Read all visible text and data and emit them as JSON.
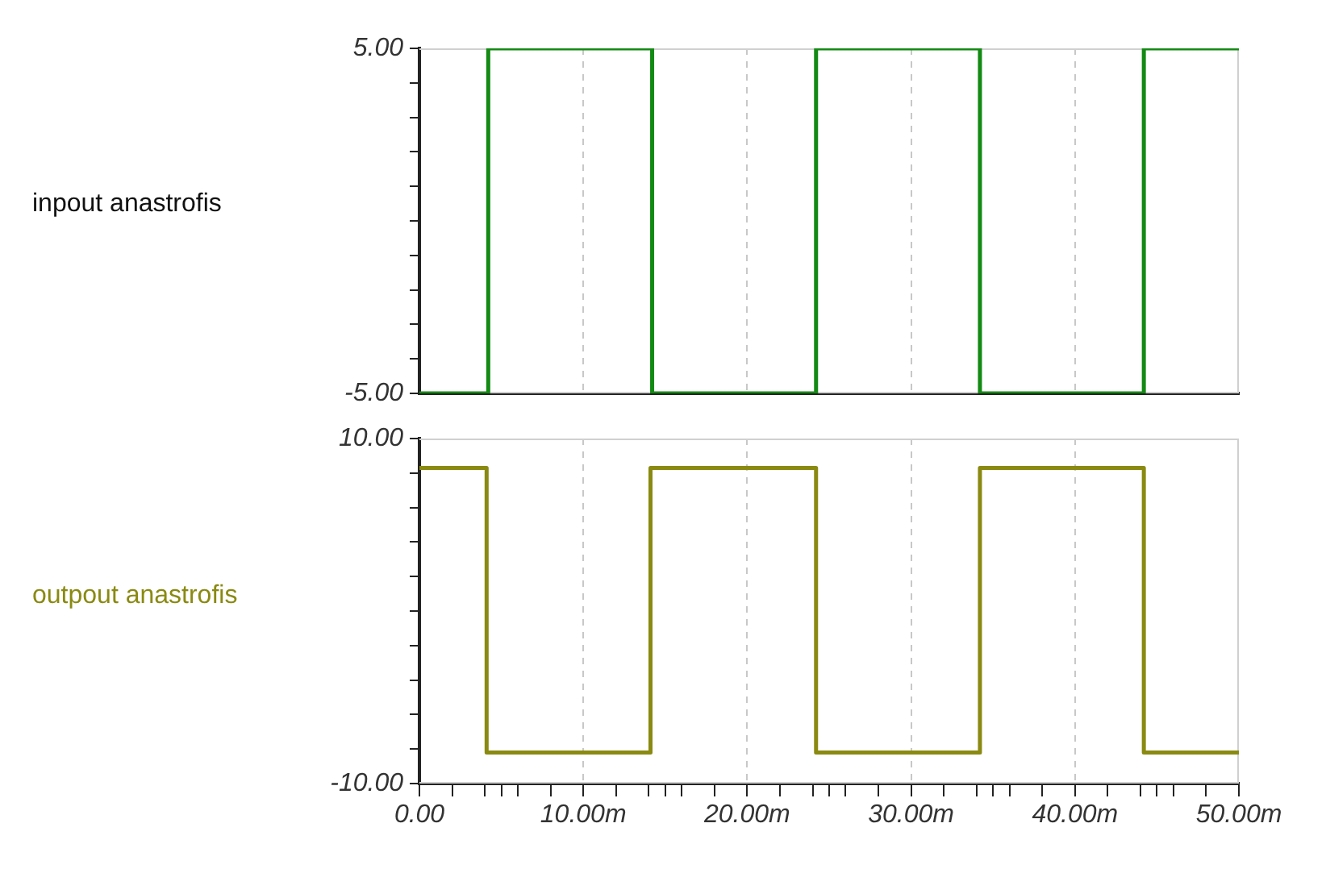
{
  "chart_data": [
    {
      "type": "step",
      "ylabel": "inpout anastrofis",
      "x": [
        0,
        4.2,
        14.2,
        24.2,
        34.2,
        44.2,
        50
      ],
      "series": [
        {
          "color": "#138a13",
          "values": [
            -5,
            5,
            -5,
            5,
            -5,
            5,
            5
          ]
        }
      ],
      "ylim": [
        -5,
        5
      ],
      "yticks": [
        {
          "value": -5,
          "label": "-5.00"
        },
        {
          "value": -4,
          "label": null
        },
        {
          "value": -3,
          "label": null
        },
        {
          "value": -2,
          "label": null
        },
        {
          "value": -1,
          "label": null
        },
        {
          "value": 0,
          "label": null
        },
        {
          "value": 1,
          "label": null
        },
        {
          "value": 2,
          "label": null
        },
        {
          "value": 3,
          "label": null
        },
        {
          "value": 4,
          "label": null
        },
        {
          "value": 5,
          "label": "5.00"
        }
      ],
      "xlim": [
        0,
        50
      ],
      "xticks": [
        {
          "value": 0,
          "label": null
        },
        {
          "value": 10,
          "label": null
        },
        {
          "value": 20,
          "label": null
        },
        {
          "value": 30,
          "label": null
        },
        {
          "value": 40,
          "label": null
        },
        {
          "value": 50,
          "label": null
        }
      ],
      "grid": "x",
      "tick_labels": "y"
    },
    {
      "type": "step",
      "ylabel": "outpout anastrofis",
      "x": [
        0,
        4.1,
        14.1,
        24.2,
        34.2,
        44.2,
        50
      ],
      "series": [
        {
          "color": "#8a8a12",
          "values": [
            8.3,
            -8.2,
            8.3,
            -8.2,
            8.3,
            -8.2,
            -8.2
          ]
        }
      ],
      "ylim": [
        -10,
        10
      ],
      "yticks": [
        {
          "value": -10,
          "label": "-10.00"
        },
        {
          "value": -8,
          "label": null
        },
        {
          "value": -6,
          "label": null
        },
        {
          "value": -4,
          "label": null
        },
        {
          "value": -2,
          "label": null
        },
        {
          "value": 0,
          "label": null
        },
        {
          "value": 2,
          "label": null
        },
        {
          "value": 4,
          "label": null
        },
        {
          "value": 6,
          "label": null
        },
        {
          "value": 8,
          "label": null
        },
        {
          "value": 10,
          "label": "10.00"
        }
      ],
      "xlim": [
        0,
        50
      ],
      "xticks": [
        {
          "value": 0,
          "label": "0.00"
        },
        {
          "value": 2,
          "label": null
        },
        {
          "value": 4,
          "label": null
        },
        {
          "value": 5,
          "label": null
        },
        {
          "value": 6,
          "label": null
        },
        {
          "value": 8,
          "label": null
        },
        {
          "value": 10,
          "label": "10.00m"
        },
        {
          "value": 12,
          "label": null
        },
        {
          "value": 14,
          "label": null
        },
        {
          "value": 15,
          "label": null
        },
        {
          "value": 16,
          "label": null
        },
        {
          "value": 18,
          "label": null
        },
        {
          "value": 20,
          "label": "20.00m"
        },
        {
          "value": 22,
          "label": null
        },
        {
          "value": 24,
          "label": null
        },
        {
          "value": 25,
          "label": null
        },
        {
          "value": 26,
          "label": null
        },
        {
          "value": 28,
          "label": null
        },
        {
          "value": 30,
          "label": "30.00m"
        },
        {
          "value": 32,
          "label": null
        },
        {
          "value": 34,
          "label": null
        },
        {
          "value": 35,
          "label": null
        },
        {
          "value": 36,
          "label": null
        },
        {
          "value": 38,
          "label": null
        },
        {
          "value": 40,
          "label": "40.00m"
        },
        {
          "value": 42,
          "label": null
        },
        {
          "value": 44,
          "label": null
        },
        {
          "value": 45,
          "label": null
        },
        {
          "value": 46,
          "label": null
        },
        {
          "value": 48,
          "label": null
        },
        {
          "value": 50,
          "label": "50.00m"
        }
      ],
      "grid": "x"
    }
  ]
}
